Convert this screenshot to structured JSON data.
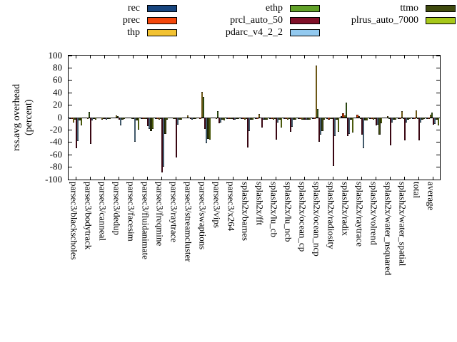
{
  "chart_data": {
    "type": "bar",
    "title": "",
    "ylabel_line1": "rss.avg overhead",
    "ylabel_line2": "(percent)",
    "ylim": [
      -100,
      100
    ],
    "ytick_step": 20,
    "yticks": [
      100,
      80,
      60,
      40,
      20,
      0,
      -20,
      -40,
      -60,
      -80,
      -100
    ],
    "grid": false,
    "legend_position": "top-horizontal-3-columns",
    "categories": [
      "parsec3/blackscholes",
      "parsec3/bodytrack",
      "parsec3/canneal",
      "parsec3/dedup",
      "parsec3/facesim",
      "parsec3/fluidanimate",
      "parsec3/freqmine",
      "parsec3/raytrace",
      "parsec3/streamcluster",
      "parsec3/swaptions",
      "parsec3/vips",
      "parsec3/x264",
      "splash2x/barnes",
      "splash2x/fft",
      "splash2x/lu_cb",
      "splash2x/lu_ncb",
      "splash2x/ocean_cp",
      "splash2x/ocean_ncp",
      "splash2x/radiosity",
      "splash2x/radix",
      "splash2x/raytrace",
      "splash2x/volrend",
      "splash2x/water_nsquared",
      "splash2x/water_spatial",
      "total",
      "average"
    ],
    "series": [
      {
        "name": "rec",
        "color": "#17457e",
        "values": [
          -2,
          -1,
          -1,
          -1,
          -1,
          -2,
          -2,
          -1,
          -1,
          -1,
          -1,
          -2,
          -2,
          -2,
          -2,
          -2,
          -2,
          -2,
          -2,
          2,
          -1,
          -2,
          -1,
          -2,
          -2,
          -2
        ]
      },
      {
        "name": "prec",
        "color": "#f4470b",
        "values": [
          -2,
          -1,
          -1,
          -1,
          -1,
          -2,
          -2,
          -1,
          -1,
          -2,
          -1,
          -2,
          -2,
          -2,
          -2,
          -2,
          -2,
          -2,
          -3,
          7,
          5,
          -2,
          -1,
          -2,
          -2,
          -2
        ]
      },
      {
        "name": "thp",
        "color": "#f2c232",
        "values": [
          -8,
          -2,
          -3,
          4,
          -1,
          -2,
          -3,
          -2,
          3,
          41,
          -2,
          -2,
          -3,
          6,
          -3,
          -3,
          -3,
          84,
          -2,
          3,
          2,
          -3,
          2,
          10,
          12,
          5
        ]
      },
      {
        "name": "ethp",
        "color": "#61a128",
        "values": [
          -3,
          9,
          -2,
          2,
          -2,
          -2,
          -2,
          -2,
          -1,
          33,
          10,
          -2,
          -2,
          -1,
          -2,
          -2,
          -3,
          14,
          -2,
          24,
          -2,
          -2,
          -2,
          -2,
          -2,
          8
        ]
      },
      {
        "name": "prcl_auto_50",
        "color": "#800f28",
        "values": [
          -49,
          -43,
          -2,
          -3,
          -2,
          -14,
          -89,
          -64,
          -2,
          -18,
          -9,
          -3,
          -48,
          -16,
          -36,
          -23,
          -4,
          -39,
          -78,
          -30,
          -28,
          -13,
          -45,
          -37,
          -37,
          -12
        ]
      },
      {
        "name": "pdarc_v4_2_2",
        "color": "#92c9ef",
        "values": [
          -38,
          -5,
          -4,
          -13,
          -39,
          -18,
          -79,
          -11,
          -3,
          -41,
          -8,
          -4,
          -22,
          -3,
          -8,
          -15,
          -4,
          -28,
          -30,
          -26,
          -49,
          -11,
          -8,
          -8,
          -8,
          -10
        ]
      },
      {
        "name": "ttmo",
        "color": "#3f4a0e",
        "values": [
          -5,
          -2,
          -2,
          -3,
          -5,
          -22,
          -27,
          -3,
          -2,
          -35,
          -3,
          -2,
          -4,
          -3,
          -4,
          -4,
          -3,
          -22,
          -4,
          -4,
          -5,
          -28,
          -3,
          -3,
          -3,
          -4
        ]
      },
      {
        "name": "plrus_auto_7000",
        "color": "#a7c81a",
        "values": [
          -13,
          -4,
          -2,
          -2,
          -19,
          -18,
          -4,
          -3,
          -2,
          -36,
          -5,
          -2,
          -3,
          -3,
          -16,
          -3,
          -3,
          -4,
          -23,
          -24,
          -5,
          -9,
          -3,
          -2,
          -2,
          -13
        ]
      }
    ],
    "legend_columns": [
      [
        0,
        1,
        2
      ],
      [
        3,
        4,
        5
      ],
      [
        6,
        7
      ]
    ]
  }
}
